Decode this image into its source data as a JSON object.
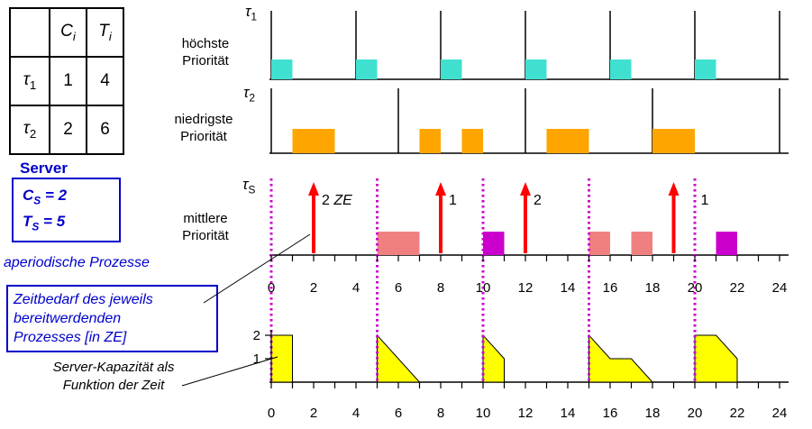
{
  "table": {
    "header": {
      "c": {
        "base": "C",
        "sub": "i"
      },
      "t": {
        "base": "T",
        "sub": "i"
      }
    },
    "rows": [
      {
        "task": {
          "base": "τ",
          "sub": "1"
        },
        "c": "1",
        "t": "4"
      },
      {
        "task": {
          "base": "τ",
          "sub": "2"
        },
        "c": "2",
        "t": "6"
      }
    ]
  },
  "server_panel": {
    "heading": "Server",
    "cs": {
      "base": "C",
      "sub": "S",
      "rest": " = 2"
    },
    "ts": {
      "base": "T",
      "sub": "S",
      "rest": " = 5"
    }
  },
  "annotations": {
    "aperiodic_label": "aperiodische Prozesse",
    "zeitbedarf": [
      "Zeitbedarf des jeweils",
      "bereitwerdenden",
      "Prozesses [in ZE]"
    ],
    "kapazitaet": [
      "Server-Kapazität als",
      "Funktion der Zeit"
    ]
  },
  "rows": [
    {
      "label": {
        "base": "τ",
        "sub": "1"
      },
      "priority": [
        "höchste",
        "Priorität"
      ]
    },
    {
      "label": {
        "base": "τ",
        "sub": "2"
      },
      "priority": [
        "niedrigste",
        "Priorität"
      ]
    },
    {
      "label": {
        "base": "τ",
        "sub": "S"
      },
      "priority": [
        "mittlere",
        "Priorität"
      ]
    }
  ],
  "colors": {
    "tau1_bar": "#40E0D0",
    "tau2_bar": "#FFA500",
    "server_bar_a": "#F08080",
    "server_bar_b": "#CC00CC",
    "replenish_line": "#CC00CC",
    "arrow": "#FF0000",
    "capacity_fill": "#FFFF00",
    "accent_blue": "#0000CC"
  },
  "chart_data": {
    "type": "timeline-schedule",
    "time_axis": {
      "min": 0,
      "max": 24,
      "tick_step": 1,
      "label_step": 2,
      "labels": [
        0,
        2,
        4,
        6,
        8,
        10,
        12,
        14,
        16,
        18,
        20,
        22,
        24
      ]
    },
    "tasks": [
      {
        "name": "τ1",
        "C": 1,
        "T": 4,
        "priority": "höchste Priorität",
        "color": "#40E0D0",
        "releases": [
          0,
          4,
          8,
          12,
          16,
          20,
          24
        ],
        "executions": [
          [
            0,
            1
          ],
          [
            4,
            5
          ],
          [
            8,
            9
          ],
          [
            12,
            13
          ],
          [
            16,
            17
          ],
          [
            20,
            21
          ]
        ]
      },
      {
        "name": "τ2",
        "C": 2,
        "T": 6,
        "priority": "niedrigste Priorität",
        "color": "#FFA500",
        "releases": [
          0,
          6,
          12,
          18,
          24
        ],
        "executions": [
          [
            1,
            3
          ],
          [
            7,
            8
          ],
          [
            9,
            10
          ],
          [
            13,
            15
          ],
          [
            18,
            20
          ]
        ]
      },
      {
        "name": "τS",
        "priority": "mittlere Priorität",
        "executions": [
          {
            "from": 5,
            "to": 7,
            "color": "#F08080"
          },
          {
            "from": 10,
            "to": 11,
            "color": "#CC00CC"
          },
          {
            "from": 15,
            "to": 16,
            "color": "#F08080"
          },
          {
            "from": 17,
            "to": 18,
            "color": "#F08080"
          },
          {
            "from": 21,
            "to": 22,
            "color": "#CC00CC"
          }
        ]
      }
    ],
    "aperiodic_requests": [
      {
        "t": 2,
        "demand": "2",
        "unit": "ZE",
        "label_dx": 9
      },
      {
        "t": 8,
        "demand": "1",
        "label_dx": 9
      },
      {
        "t": 12,
        "demand": "2",
        "label_dx": 9
      },
      {
        "t": 19,
        "demand": "1",
        "label_dx": 30
      }
    ],
    "replenishment_times": [
      0,
      5,
      10,
      15,
      20
    ],
    "capacity": {
      "ylim": [
        0,
        2
      ],
      "yticks": [
        2,
        1
      ],
      "fill": "#FFFF00",
      "shapes": [
        [
          [
            0,
            0
          ],
          [
            0,
            2
          ],
          [
            1,
            2
          ],
          [
            1,
            0
          ]
        ],
        [
          [
            5,
            0
          ],
          [
            5,
            2
          ],
          [
            7,
            0
          ]
        ],
        [
          [
            10,
            0
          ],
          [
            10,
            2
          ],
          [
            11,
            1
          ],
          [
            11,
            0
          ]
        ],
        [
          [
            15,
            0
          ],
          [
            15,
            2
          ],
          [
            16,
            1
          ],
          [
            17,
            1
          ],
          [
            18,
            0
          ]
        ],
        [
          [
            20,
            0
          ],
          [
            20,
            2
          ],
          [
            21,
            2
          ],
          [
            22,
            1
          ],
          [
            22,
            0
          ]
        ]
      ]
    }
  }
}
